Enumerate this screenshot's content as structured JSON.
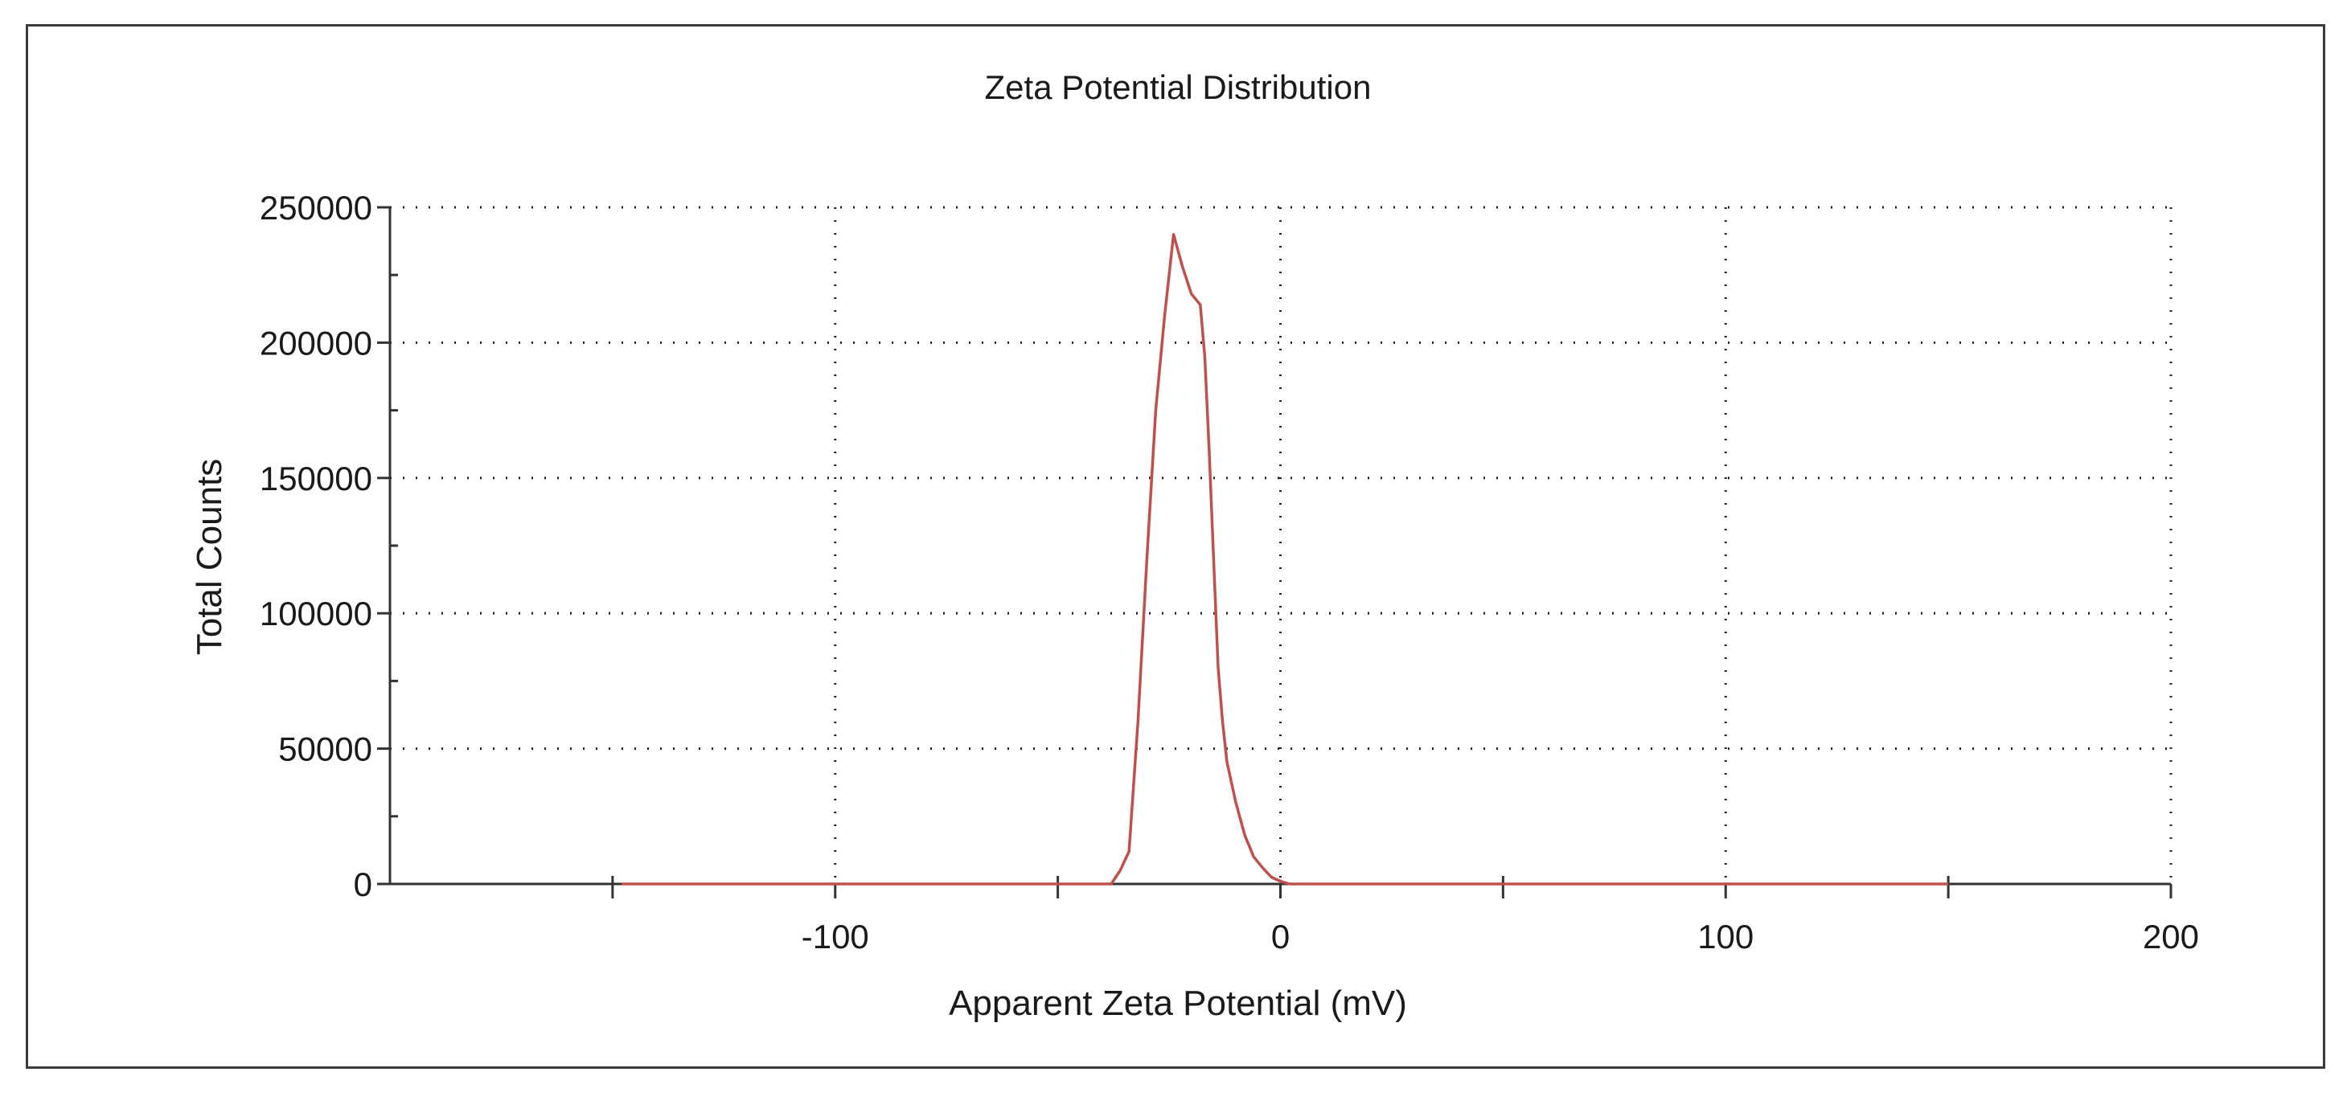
{
  "chart_data": {
    "type": "line",
    "title": "Zeta Potential Distribution",
    "xlabel": "Apparent Zeta Potential (mV)",
    "ylabel": "Total Counts",
    "xlim": [
      -200,
      200
    ],
    "ylim": [
      0,
      250000
    ],
    "x_ticks": [
      -100,
      0,
      100,
      200
    ],
    "x_tick_labels": [
      "-100",
      "0",
      "100",
      "200"
    ],
    "x_minor_ticks": [
      -150,
      -50,
      50,
      150
    ],
    "y_ticks": [
      0,
      50000,
      100000,
      150000,
      200000,
      250000
    ],
    "y_tick_labels": [
      "0",
      "50000",
      "100000",
      "150000",
      "200000",
      "250000"
    ],
    "y_minor_ticks": [
      25000,
      75000,
      125000,
      175000,
      225000
    ],
    "grid": true,
    "grid_style": "dotted",
    "series": [
      {
        "name": "Total Counts",
        "color": "#c0504d",
        "x": [
          -148,
          -100,
          -50,
          -38,
          -36,
          -34,
          -32,
          -30,
          -28,
          -26,
          -24,
          -22,
          -20,
          -19,
          -18,
          -17,
          -16,
          -15,
          -14,
          -13,
          -12,
          -10,
          -8,
          -6,
          -4,
          -2,
          0,
          2,
          4,
          50,
          100,
          150
        ],
        "y": [
          0,
          0,
          0,
          0,
          5000,
          12000,
          60000,
          120000,
          175000,
          210000,
          240000,
          228000,
          218000,
          216000,
          214000,
          195000,
          160000,
          120000,
          80000,
          60000,
          45000,
          30000,
          18000,
          10000,
          6000,
          2500,
          1000,
          0,
          0,
          0,
          0,
          0
        ]
      }
    ]
  }
}
